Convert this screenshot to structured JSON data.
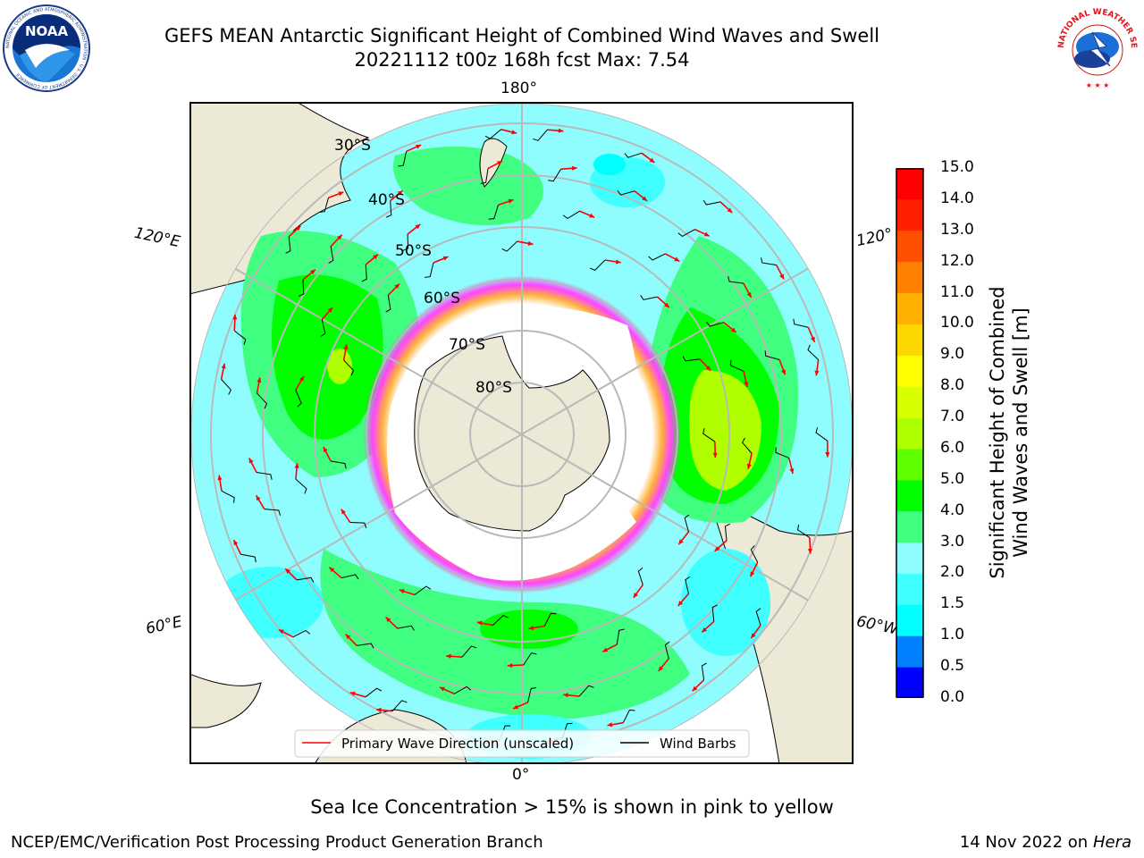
{
  "header": {
    "title_line1": "GEFS MEAN Antarctic Significant Height of Combined Wind Waves and Swell",
    "title_line2": "20221112 t00z 168h fcst   Max: 7.54"
  },
  "logos": {
    "noaa": {
      "text": "NOAA",
      "ring_text": "NATIONAL OCEANIC AND ATMOSPHERIC ADMINISTRATION · U.S. DEPARTMENT OF COMMERCE"
    },
    "nws": {
      "ring_text": "NATIONAL WEATHER SERVICE"
    }
  },
  "map": {
    "longitude_labels": {
      "top": "180°",
      "bottom": "0°",
      "upper_left": "120°E",
      "lower_left": "60°E",
      "upper_right": "120°",
      "lower_right": "60°W"
    },
    "latitude_labels": [
      "30°S",
      "40°S",
      "50°S",
      "60°S",
      "70°S",
      "80°S"
    ],
    "legend": {
      "wave": "Primary Wave Direction (unscaled)",
      "barb": "Wind Barbs"
    },
    "colors": {
      "ocean_low": "#8ffdfd",
      "land": "#ede9d7",
      "ice": "#ffffff",
      "ice_edge": "#ff44ff",
      "ice_mid": "#ffb13a",
      "arrow": "#ff0000",
      "barb": "#000000"
    }
  },
  "colorbar": {
    "title_line1": "Significant Height of Combined",
    "title_line2": "Wind Waves and Swell [m]",
    "ticks": [
      "15.0",
      "14.0",
      "13.0",
      "12.0",
      "11.0",
      "10.0",
      "9.0",
      "8.0",
      "7.0",
      "6.0",
      "5.0",
      "4.0",
      "3.0",
      "2.0",
      "1.5",
      "1.0",
      "0.5",
      "0.0"
    ],
    "colors": [
      "#0000ff",
      "#0080ff",
      "#00ffff",
      "#40ffff",
      "#8ffdfd",
      "#40ff80",
      "#00ff00",
      "#60ff00",
      "#b0ff00",
      "#d8ff00",
      "#ffff00",
      "#ffd700",
      "#ffb000",
      "#ff8000",
      "#ff5000",
      "#ff2000",
      "#ff0000"
    ]
  },
  "footer": {
    "note": "Sea Ice Concentration > 15% is shown in pink to yellow",
    "left": "NCEP/EMC/Verification Post Processing Product Generation Branch",
    "right_date": "14 Nov 2022 on",
    "right_host": "Hera"
  }
}
